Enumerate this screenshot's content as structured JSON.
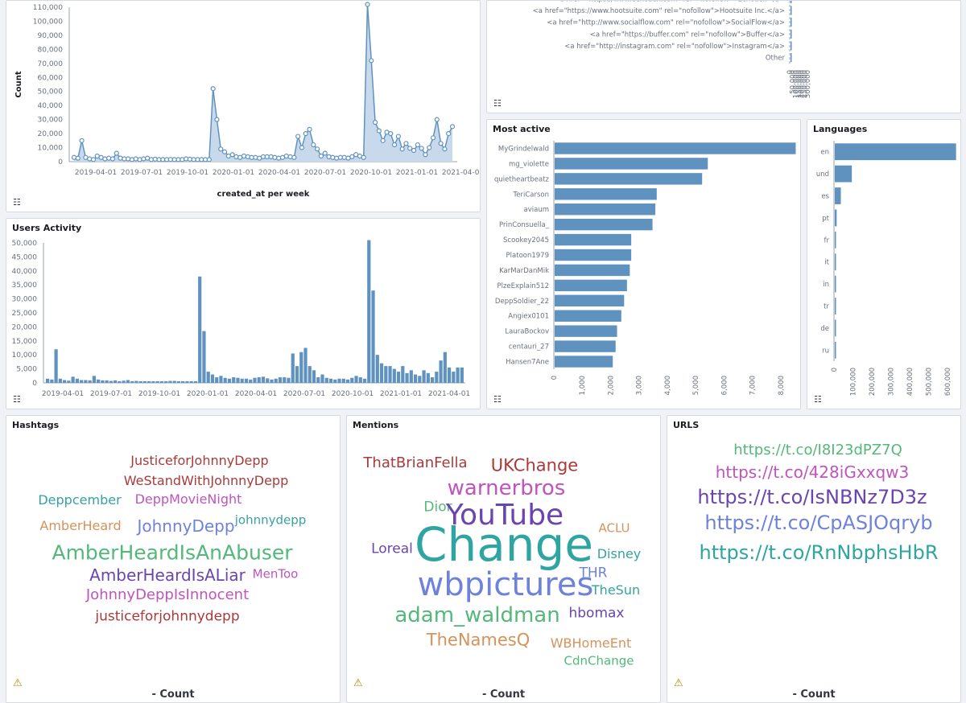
{
  "panels": {
    "tweets_over_time": {
      "y_axis_title": "Count",
      "x_axis_title": "created_at per week",
      "legend_icon": "list-icon"
    },
    "users_activity": {
      "title": "Users Activity",
      "legend_icon": "list-icon"
    },
    "sources": {
      "legend_icon": "list-icon"
    },
    "most_active": {
      "title": "Most active",
      "legend_icon": "list-icon"
    },
    "languages": {
      "title": "Languages",
      "legend_icon": "list-icon"
    },
    "hashtags": {
      "title": "Hashtags",
      "footer": "- Count",
      "warning_icon": "warning-icon"
    },
    "mentions": {
      "title": "Mentions",
      "footer": "- Count",
      "warning_icon": "warning-icon"
    },
    "urls": {
      "title": "URLS",
      "footer": "- Count",
      "warning_icon": "warning-icon"
    }
  },
  "chart_data": [
    {
      "id": "tweets_over_time",
      "type": "area",
      "xlabel": "created_at per week",
      "ylabel": "Count",
      "ylim": [
        0,
        110000
      ],
      "y_ticks": [
        "0",
        "10,000",
        "20,000",
        "30,000",
        "40,000",
        "50,000",
        "60,000",
        "70,000",
        "80,000",
        "90,000",
        "100,000",
        "110,000"
      ],
      "x_ticks": [
        "2019-04-01",
        "2019-07-01",
        "2019-10-01",
        "2020-01-01",
        "2020-04-01",
        "2020-07-01",
        "2020-10-01",
        "2021-01-01",
        "2021-04-01"
      ],
      "values": [
        3000,
        2500,
        15000,
        3000,
        2000,
        1500,
        4000,
        3000,
        2000,
        2500,
        2000,
        6000,
        2500,
        2000,
        2000,
        1500,
        2000,
        1500,
        2000,
        2500,
        1500,
        1800,
        1500,
        1500,
        1500,
        1600,
        1500,
        1500,
        1500,
        2000,
        1800,
        1500,
        1500,
        1500,
        1500,
        1500,
        52000,
        30000,
        9000,
        7000,
        4000,
        5000,
        3500,
        3000,
        4000,
        3500,
        3000,
        3000,
        2500,
        3500,
        3500,
        3500,
        3000,
        2500,
        3000,
        4000,
        3500,
        3000,
        18000,
        10000,
        20000,
        23000,
        12000,
        9000,
        4000,
        6000,
        3500,
        3000,
        2500,
        3000,
        3000,
        2500,
        3500,
        5000,
        4000,
        3000,
        112000,
        72000,
        28000,
        22000,
        15000,
        21000,
        20000,
        12000,
        18000,
        9000,
        13000,
        9500,
        8000,
        12000,
        9500,
        5000,
        10000,
        17000,
        30000,
        13000,
        9000,
        20000,
        25000
      ],
      "series": [
        {
          "name": "Count"
        }
      ],
      "color": "#6092c0",
      "grid": false
    },
    {
      "id": "users_activity",
      "type": "bar",
      "ylim": [
        0,
        50000
      ],
      "y_ticks": [
        "0",
        "5,000",
        "10,000",
        "15,000",
        "20,000",
        "25,000",
        "30,000",
        "35,000",
        "40,000",
        "45,000",
        "50,000"
      ],
      "x_ticks": [
        "2019-04-01",
        "2019-07-01",
        "2019-10-01",
        "2020-01-01",
        "2020-04-01",
        "2020-07-01",
        "2020-10-01",
        "2021-01-01",
        "2021-04-01"
      ],
      "values": [
        1500,
        1200,
        12000,
        1500,
        1000,
        800,
        2200,
        1500,
        1000,
        1000,
        900,
        2500,
        1200,
        900,
        900,
        700,
        900,
        600,
        800,
        1000,
        600,
        700,
        600,
        600,
        600,
        600,
        600,
        600,
        600,
        700,
        700,
        600,
        600,
        600,
        600,
        600,
        38000,
        18500,
        4000,
        3000,
        2000,
        2500,
        1800,
        1500,
        2000,
        1800,
        1500,
        1500,
        1200,
        1800,
        2000,
        2200,
        1600,
        1200,
        1500,
        2000,
        2000,
        1800,
        10500,
        6000,
        11000,
        12500,
        6000,
        4500,
        2000,
        3000,
        1800,
        1500,
        1200,
        1500,
        1500,
        1200,
        1800,
        2500,
        2000,
        1500,
        51000,
        33000,
        10000,
        7000,
        6000,
        6000,
        5000,
        4000,
        6000,
        3500,
        4500,
        3000,
        2500,
        4500,
        3500,
        2000,
        4000,
        8000,
        11000,
        5500,
        4000,
        5500,
        5500
      ],
      "color": "#6092c0",
      "grid": false
    },
    {
      "id": "sources",
      "type": "bar",
      "orientation": "horizontal",
      "categories": [
        "<a href=\"https://www.echobox.com\" rel=\"nofollow\">Echobox</a>",
        "<a href=\"https://www.hootsuite.com\" rel=\"nofollow\">Hootsuite Inc.</a>",
        "<a href=\"http://www.socialflow.com\" rel=\"nofollow\">SocialFlow</a>",
        "<a href=\"https://buffer.com\" rel=\"nofollow\">Buffer</a>",
        "<a href=\"http://instagram.com\" rel=\"nofollow\">Instagram</a>",
        "Other"
      ],
      "values": [
        600,
        500,
        500,
        400,
        400,
        12000
      ],
      "x_ticks": [
        "0",
        "50,000",
        "100,000",
        "150,000",
        "200,000",
        "250,000",
        "300,000"
      ],
      "xlim": [
        0,
        330000
      ],
      "color": "#6092c0"
    },
    {
      "id": "most_active",
      "type": "bar",
      "orientation": "horizontal",
      "title": "Most active",
      "categories": [
        "MyGrindelwald",
        "mg_violette",
        "quietheartbeatz",
        "TeriCarson",
        "aviaum",
        "PrinConsuella_",
        "Scookey2045",
        "Platoon1979",
        "KarMarDanMik",
        "PlzeExplain512",
        "DeppSoldier_22",
        "Angiex0101",
        "LauraBockov",
        "centauri_27",
        "Hansen7Ane"
      ],
      "values": [
        8500,
        5400,
        5200,
        3600,
        3550,
        3450,
        2700,
        2700,
        2650,
        2550,
        2450,
        2350,
        2200,
        2150,
        2050
      ],
      "x_ticks": [
        "0",
        "1,000",
        "2,000",
        "3,000",
        "4,000",
        "5,000",
        "6,000",
        "7,000",
        "8,000"
      ],
      "xlim": [
        0,
        8600
      ],
      "color": "#6092c0"
    },
    {
      "id": "languages",
      "type": "bar",
      "orientation": "horizontal",
      "title": "Languages",
      "categories": [
        "en",
        "und",
        "es",
        "pt",
        "fr",
        "it",
        "in",
        "tr",
        "de",
        "ru"
      ],
      "values": [
        640000,
        90000,
        32000,
        10000,
        6000,
        3000,
        2500,
        2000,
        2000,
        1500
      ],
      "x_ticks": [
        "0",
        "100,000",
        "200,000",
        "300,000",
        "400,000",
        "500,000",
        "600,000"
      ],
      "xlim": [
        0,
        650000
      ],
      "color": "#6092c0"
    }
  ],
  "clouds": {
    "hashtags": [
      {
        "text": "JusticeforJohnnyDepp",
        "size": 16,
        "color": "#aa3a3a"
      },
      {
        "text": "WeStandWithJohnnyDepp",
        "size": 16,
        "color": "#aa3a3a"
      },
      {
        "text": "Deppcember",
        "size": 16,
        "color": "#36a2a2"
      },
      {
        "text": "DeppMovieNight",
        "size": 16,
        "color": "#c054be"
      },
      {
        "text": "AmberHeard",
        "size": 16,
        "color": "#d6925a"
      },
      {
        "text": "JohnnyDepp",
        "size": 20,
        "color": "#6e82dc"
      },
      {
        "text": "johnnydepp",
        "size": 15,
        "color": "#36a2a2"
      },
      {
        "text": "AmberHeardIsAnAbuser",
        "size": 25,
        "color": "#54b87a"
      },
      {
        "text": "AmberHeardIsALiar",
        "size": 20,
        "color": "#6a45b0"
      },
      {
        "text": "MenToo",
        "size": 15,
        "color": "#c054be"
      },
      {
        "text": "JohnnyDeppIsInnocent",
        "size": 18,
        "color": "#c054be"
      },
      {
        "text": "justiceforjohnnydepp",
        "size": 17,
        "color": "#aa3a3a"
      }
    ],
    "mentions": [
      {
        "text": "ThatBrianFella",
        "size": 18,
        "color": "#aa3a3a"
      },
      {
        "text": "UKChange",
        "size": 21,
        "color": "#aa3a3a"
      },
      {
        "text": "warnerbros",
        "size": 26,
        "color": "#c054be"
      },
      {
        "text": "Dior",
        "size": 17,
        "color": "#54b87a"
      },
      {
        "text": "YouTube",
        "size": 36,
        "color": "#6a45b0"
      },
      {
        "text": "ACLU",
        "size": 15,
        "color": "#d6925a"
      },
      {
        "text": "Loreal",
        "size": 17,
        "color": "#6a45b0"
      },
      {
        "text": "Change",
        "size": 58,
        "color": "#2ea5a0"
      },
      {
        "text": "Disney",
        "size": 16,
        "color": "#36a2a2"
      },
      {
        "text": "THR",
        "size": 17,
        "color": "#6e82dc"
      },
      {
        "text": "wbpictures",
        "size": 40,
        "color": "#6e82dc"
      },
      {
        "text": "TheSun",
        "size": 16,
        "color": "#36a2a2"
      },
      {
        "text": "adam_waldman",
        "size": 26,
        "color": "#54b87a"
      },
      {
        "text": "hbomax",
        "size": 17,
        "color": "#6a45b0"
      },
      {
        "text": "TheNamesQ",
        "size": 21,
        "color": "#d6925a"
      },
      {
        "text": "WBHomeEnt",
        "size": 16,
        "color": "#d6925a"
      },
      {
        "text": "CdnChange",
        "size": 15,
        "color": "#54b87a"
      }
    ],
    "urls": [
      {
        "text": "https://t.co/I8I23dPZ7Q",
        "size": 18,
        "color": "#54b87a"
      },
      {
        "text": "https://t.co/428iGxxqw3",
        "size": 20,
        "color": "#c054be"
      },
      {
        "text": "https://t.co/IsNBNz7D3z",
        "size": 24,
        "color": "#6a45b0"
      },
      {
        "text": "https://t.co/CpASJOqryb",
        "size": 24,
        "color": "#6e82dc"
      },
      {
        "text": "https://t.co/RnNbphsHbR",
        "size": 24,
        "color": "#2ea5a0"
      }
    ]
  }
}
